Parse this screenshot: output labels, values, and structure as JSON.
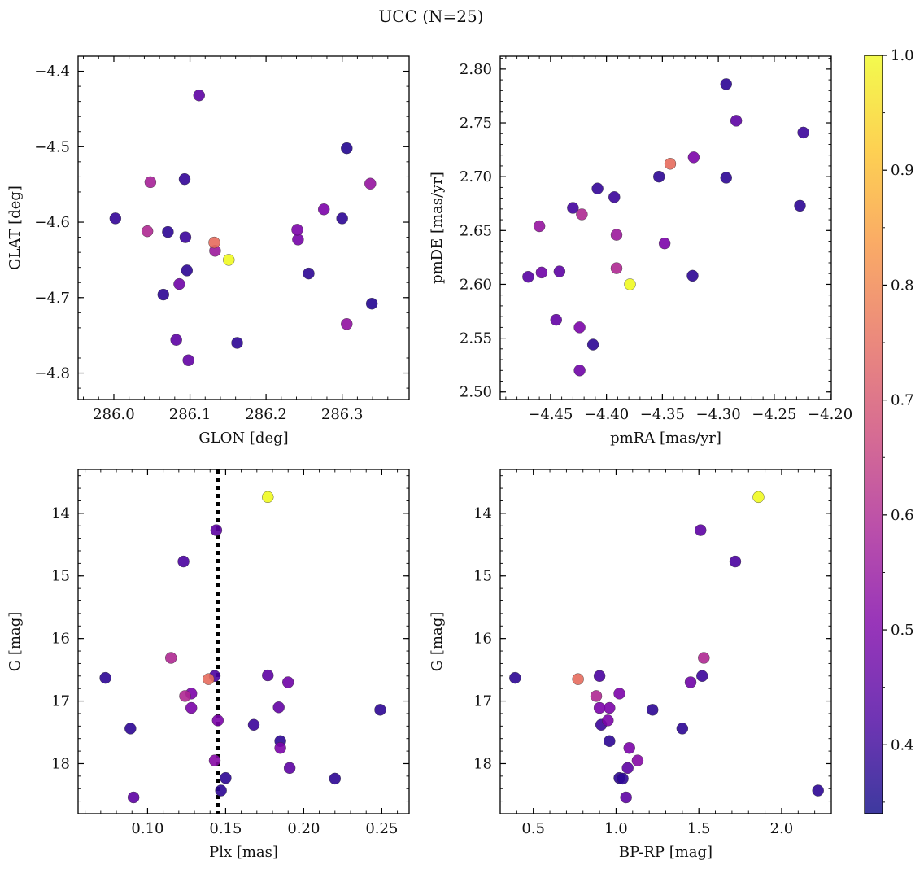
{
  "figure": {
    "title": "UCC (N=25)"
  },
  "colorbar": {
    "range": [
      0.34,
      1.0
    ],
    "ticks": [
      0.4,
      0.5,
      0.6,
      0.7,
      0.8,
      0.9,
      1.0
    ],
    "tick_labels": [
      "0.4",
      "0.5",
      "0.6",
      "0.7",
      "0.8",
      "0.9",
      "1.0"
    ],
    "colormap": "plasma"
  },
  "chart_data": [
    {
      "type": "scatter",
      "id": "glon-glat",
      "xlabel": "GLON [deg]",
      "ylabel": "GLAT [deg]",
      "xlim": [
        285.953,
        286.388
      ],
      "ylim": [
        -4.835,
        -4.38
      ],
      "y_inverted": false,
      "xticks": [
        286.0,
        286.1,
        286.2,
        286.3
      ],
      "xtick_labels": [
        "286.0",
        "286.1",
        "286.2",
        "286.3"
      ],
      "yticks": [
        -4.8,
        -4.7,
        -4.6,
        -4.5,
        -4.4
      ],
      "ytick_labels": [
        "−4.8",
        "−4.7",
        "−4.6",
        "−4.5",
        "−4.4"
      ],
      "vline": null,
      "points": [
        {
          "x": 286.112,
          "y": -4.432,
          "c": 0.45
        },
        {
          "x": 286.306,
          "y": -4.502,
          "c": 0.37
        },
        {
          "x": 286.093,
          "y": -4.543,
          "c": 0.39
        },
        {
          "x": 286.048,
          "y": -4.547,
          "c": 0.58
        },
        {
          "x": 286.337,
          "y": -4.549,
          "c": 0.55
        },
        {
          "x": 286.276,
          "y": -4.583,
          "c": 0.5
        },
        {
          "x": 286.002,
          "y": -4.595,
          "c": 0.39
        },
        {
          "x": 286.3,
          "y": -4.595,
          "c": 0.38
        },
        {
          "x": 286.044,
          "y": -4.612,
          "c": 0.6
        },
        {
          "x": 286.071,
          "y": -4.613,
          "c": 0.38
        },
        {
          "x": 286.241,
          "y": -4.61,
          "c": 0.5
        },
        {
          "x": 286.094,
          "y": -4.62,
          "c": 0.4
        },
        {
          "x": 286.242,
          "y": -4.623,
          "c": 0.49
        },
        {
          "x": 286.132,
          "y": -4.627,
          "c": 0.75
        },
        {
          "x": 286.133,
          "y": -4.638,
          "c": 0.56
        },
        {
          "x": 286.151,
          "y": -4.65,
          "c": 1.0
        },
        {
          "x": 286.096,
          "y": -4.664,
          "c": 0.38
        },
        {
          "x": 286.256,
          "y": -4.668,
          "c": 0.38
        },
        {
          "x": 286.086,
          "y": -4.682,
          "c": 0.48
        },
        {
          "x": 286.065,
          "y": -4.696,
          "c": 0.38
        },
        {
          "x": 286.339,
          "y": -4.708,
          "c": 0.37
        },
        {
          "x": 286.306,
          "y": -4.735,
          "c": 0.54
        },
        {
          "x": 286.082,
          "y": -4.756,
          "c": 0.45
        },
        {
          "x": 286.162,
          "y": -4.76,
          "c": 0.38
        },
        {
          "x": 286.098,
          "y": -4.783,
          "c": 0.46
        }
      ]
    },
    {
      "type": "scatter",
      "id": "pmra-pmde",
      "xlabel": "pmRA [mas/yr]",
      "ylabel": "pmDE [mas/yr]",
      "xlim": [
        -4.495,
        -4.199
      ],
      "ylim": [
        2.493,
        2.812
      ],
      "y_inverted": false,
      "xticks": [
        -4.45,
        -4.4,
        -4.35,
        -4.3,
        -4.25,
        -4.2
      ],
      "xtick_labels": [
        "−4.45",
        "−4.40",
        "−4.35",
        "−4.30",
        "−4.25",
        "−4.20"
      ],
      "yticks": [
        2.5,
        2.55,
        2.6,
        2.65,
        2.7,
        2.75,
        2.8
      ],
      "ytick_labels": [
        "2.50",
        "2.55",
        "2.60",
        "2.65",
        "2.70",
        "2.75",
        "2.80"
      ],
      "vline": null,
      "points": [
        {
          "x": -4.293,
          "y": 2.786,
          "c": 0.38
        },
        {
          "x": -4.284,
          "y": 2.752,
          "c": 0.45
        },
        {
          "x": -4.224,
          "y": 2.741,
          "c": 0.4
        },
        {
          "x": -4.343,
          "y": 2.712,
          "c": 0.75
        },
        {
          "x": -4.322,
          "y": 2.718,
          "c": 0.5
        },
        {
          "x": -4.353,
          "y": 2.7,
          "c": 0.38
        },
        {
          "x": -4.293,
          "y": 2.699,
          "c": 0.38
        },
        {
          "x": -4.408,
          "y": 2.689,
          "c": 0.39
        },
        {
          "x": -4.393,
          "y": 2.681,
          "c": 0.4
        },
        {
          "x": -4.227,
          "y": 2.673,
          "c": 0.38
        },
        {
          "x": -4.43,
          "y": 2.671,
          "c": 0.41
        },
        {
          "x": -4.422,
          "y": 2.665,
          "c": 0.6
        },
        {
          "x": -4.46,
          "y": 2.654,
          "c": 0.55
        },
        {
          "x": -4.391,
          "y": 2.646,
          "c": 0.56
        },
        {
          "x": -4.348,
          "y": 2.638,
          "c": 0.5
        },
        {
          "x": -4.458,
          "y": 2.611,
          "c": 0.48
        },
        {
          "x": -4.442,
          "y": 2.612,
          "c": 0.45
        },
        {
          "x": -4.391,
          "y": 2.615,
          "c": 0.6
        },
        {
          "x": -4.47,
          "y": 2.607,
          "c": 0.44
        },
        {
          "x": -4.323,
          "y": 2.608,
          "c": 0.38
        },
        {
          "x": -4.379,
          "y": 2.6,
          "c": 1.0
        },
        {
          "x": -4.445,
          "y": 2.567,
          "c": 0.46
        },
        {
          "x": -4.424,
          "y": 2.56,
          "c": 0.5
        },
        {
          "x": -4.412,
          "y": 2.544,
          "c": 0.38
        },
        {
          "x": -4.424,
          "y": 2.52,
          "c": 0.48
        }
      ]
    },
    {
      "type": "scatter",
      "id": "plx-g",
      "xlabel": "Plx [mas]",
      "ylabel": "G [mag]",
      "xlim": [
        0.0555,
        0.2675
      ],
      "ylim": [
        13.3,
        18.8
      ],
      "y_inverted": true,
      "xticks": [
        0.1,
        0.15,
        0.2,
        0.25
      ],
      "xtick_labels": [
        "0.10",
        "0.15",
        "0.20",
        "0.25"
      ],
      "yticks": [
        14,
        15,
        16,
        17,
        18
      ],
      "ytick_labels": [
        "14",
        "15",
        "16",
        "17",
        "18"
      ],
      "vline": 0.145,
      "points": [
        {
          "x": 0.177,
          "y": 13.74,
          "c": 1.0
        },
        {
          "x": 0.144,
          "y": 14.27,
          "c": 0.45
        },
        {
          "x": 0.123,
          "y": 14.77,
          "c": 0.42
        },
        {
          "x": 0.115,
          "y": 16.31,
          "c": 0.6
        },
        {
          "x": 0.073,
          "y": 16.63,
          "c": 0.38
        },
        {
          "x": 0.143,
          "y": 16.6,
          "c": 0.42
        },
        {
          "x": 0.139,
          "y": 16.65,
          "c": 0.75
        },
        {
          "x": 0.177,
          "y": 16.59,
          "c": 0.45
        },
        {
          "x": 0.19,
          "y": 16.7,
          "c": 0.48
        },
        {
          "x": 0.128,
          "y": 16.88,
          "c": 0.5
        },
        {
          "x": 0.124,
          "y": 16.92,
          "c": 0.6
        },
        {
          "x": 0.128,
          "y": 17.11,
          "c": 0.5
        },
        {
          "x": 0.184,
          "y": 17.1,
          "c": 0.46
        },
        {
          "x": 0.249,
          "y": 17.14,
          "c": 0.38
        },
        {
          "x": 0.145,
          "y": 17.31,
          "c": 0.5
        },
        {
          "x": 0.168,
          "y": 17.38,
          "c": 0.4
        },
        {
          "x": 0.089,
          "y": 17.44,
          "c": 0.38
        },
        {
          "x": 0.185,
          "y": 17.64,
          "c": 0.38
        },
        {
          "x": 0.185,
          "y": 17.75,
          "c": 0.5
        },
        {
          "x": 0.143,
          "y": 17.95,
          "c": 0.52
        },
        {
          "x": 0.191,
          "y": 18.07,
          "c": 0.45
        },
        {
          "x": 0.15,
          "y": 18.23,
          "c": 0.38
        },
        {
          "x": 0.22,
          "y": 18.24,
          "c": 0.38
        },
        {
          "x": 0.147,
          "y": 18.43,
          "c": 0.38
        },
        {
          "x": 0.091,
          "y": 18.54,
          "c": 0.45
        }
      ]
    },
    {
      "type": "scatter",
      "id": "bprp-g",
      "xlabel": "BP-RP [mag]",
      "ylabel": "G [mag]",
      "xlim": [
        0.3,
        2.3
      ],
      "ylim": [
        13.3,
        18.8
      ],
      "y_inverted": true,
      "xticks": [
        0.5,
        1.0,
        1.5,
        2.0
      ],
      "xtick_labels": [
        "0.5",
        "1.0",
        "1.5",
        "2.0"
      ],
      "yticks": [
        14,
        15,
        16,
        17,
        18
      ],
      "ytick_labels": [
        "14",
        "15",
        "16",
        "17",
        "18"
      ],
      "vline": null,
      "points": [
        {
          "x": 1.86,
          "y": 13.74,
          "c": 1.0
        },
        {
          "x": 1.51,
          "y": 14.27,
          "c": 0.45
        },
        {
          "x": 1.72,
          "y": 14.77,
          "c": 0.42
        },
        {
          "x": 1.53,
          "y": 16.31,
          "c": 0.6
        },
        {
          "x": 0.39,
          "y": 16.63,
          "c": 0.38
        },
        {
          "x": 0.77,
          "y": 16.65,
          "c": 0.75
        },
        {
          "x": 0.9,
          "y": 16.6,
          "c": 0.42
        },
        {
          "x": 1.52,
          "y": 16.6,
          "c": 0.4
        },
        {
          "x": 1.45,
          "y": 16.7,
          "c": 0.48
        },
        {
          "x": 0.88,
          "y": 16.92,
          "c": 0.6
        },
        {
          "x": 1.02,
          "y": 16.88,
          "c": 0.5
        },
        {
          "x": 0.9,
          "y": 17.11,
          "c": 0.5
        },
        {
          "x": 0.96,
          "y": 17.11,
          "c": 0.5
        },
        {
          "x": 1.22,
          "y": 17.14,
          "c": 0.38
        },
        {
          "x": 0.95,
          "y": 17.31,
          "c": 0.5
        },
        {
          "x": 0.91,
          "y": 17.38,
          "c": 0.4
        },
        {
          "x": 1.4,
          "y": 17.44,
          "c": 0.38
        },
        {
          "x": 0.96,
          "y": 17.64,
          "c": 0.38
        },
        {
          "x": 1.08,
          "y": 17.75,
          "c": 0.5
        },
        {
          "x": 1.13,
          "y": 17.95,
          "c": 0.52
        },
        {
          "x": 1.07,
          "y": 18.07,
          "c": 0.45
        },
        {
          "x": 1.02,
          "y": 18.23,
          "c": 0.38
        },
        {
          "x": 1.04,
          "y": 18.24,
          "c": 0.38
        },
        {
          "x": 2.22,
          "y": 18.43,
          "c": 0.38
        },
        {
          "x": 1.06,
          "y": 18.54,
          "c": 0.45
        }
      ]
    }
  ]
}
